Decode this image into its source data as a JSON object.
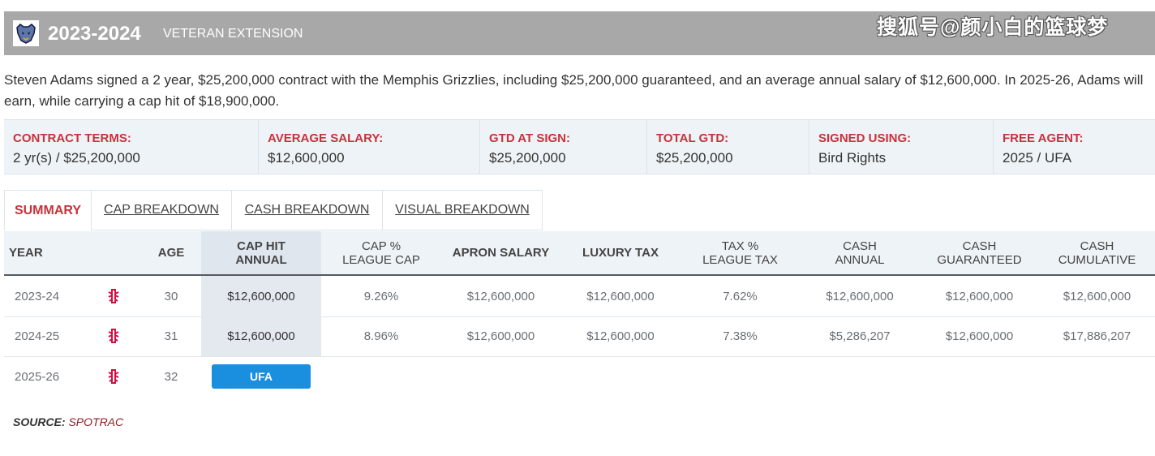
{
  "header": {
    "year": "2023-2024",
    "contract_type": "VETERAN EXTENSION",
    "watermark": "搜狐号@颜小白的篮球梦"
  },
  "description": "Steven Adams signed a 2 year, $25,200,000 contract with the Memphis Grizzlies, including $25,200,000 guaranteed, and an average annual salary of $12,600,000. In 2025-26, Adams will earn, while carrying a cap hit of $18,900,000.",
  "terms": [
    {
      "label": "CONTRACT TERMS:",
      "value": "2 yr(s) / $25,200,000"
    },
    {
      "label": "AVERAGE SALARY:",
      "value": "$12,600,000"
    },
    {
      "label": "GTD AT SIGN:",
      "value": "$25,200,000"
    },
    {
      "label": "TOTAL GTD:",
      "value": "$25,200,000"
    },
    {
      "label": "SIGNED USING:",
      "value": "Bird Rights"
    },
    {
      "label": "FREE AGENT:",
      "value": "2025 / UFA"
    }
  ],
  "tabs": [
    "SUMMARY",
    "CAP BREAKDOWN",
    "CASH BREAKDOWN",
    "VISUAL BREAKDOWN"
  ],
  "columns": {
    "year": "YEAR",
    "age": "AGE",
    "cap_hit_1": "CAP HIT",
    "cap_hit_2": "ANNUAL",
    "cap_pct_1": "CAP %",
    "cap_pct_2": "LEAGUE CAP",
    "apron": "APRON SALARY",
    "lux": "LUXURY TAX",
    "tax_pct_1": "TAX %",
    "tax_pct_2": "LEAGUE TAX",
    "cash_annual_1": "CASH",
    "cash_annual_2": "ANNUAL",
    "cash_gtd_1": "CASH",
    "cash_gtd_2": "GUARANTEED",
    "cash_cum_1": "CASH",
    "cash_cum_2": "CUMULATIVE"
  },
  "rows": [
    {
      "year": "2023-24",
      "team_icon": "houston-rockets-logo-icon",
      "age": "30",
      "cap_hit": "$12,600,000",
      "cap_pct": "9.26%",
      "apron": "$12,600,000",
      "lux": "$12,600,000",
      "tax_pct": "7.62%",
      "cash_annual": "$12,600,000",
      "cash_gtd": "$12,600,000",
      "cash_cum": "$12,600,000"
    },
    {
      "year": "2024-25",
      "team_icon": "houston-rockets-logo-icon",
      "age": "31",
      "cap_hit": "$12,600,000",
      "cap_pct": "8.96%",
      "apron": "$12,600,000",
      "lux": "$12,600,000",
      "tax_pct": "7.38%",
      "cash_annual": "$5,286,207",
      "cash_gtd": "$12,600,000",
      "cash_cum": "$17,886,207"
    },
    {
      "year": "2025-26",
      "team_icon": "houston-rockets-logo-icon",
      "age": "32",
      "status": "UFA"
    }
  ],
  "source": {
    "label": "SOURCE:",
    "value": "SPOTRAC"
  },
  "colors": {
    "accent": "#c8323a",
    "ufa_badge": "#1a8fe0",
    "header_bg": "#a8a8a8"
  }
}
